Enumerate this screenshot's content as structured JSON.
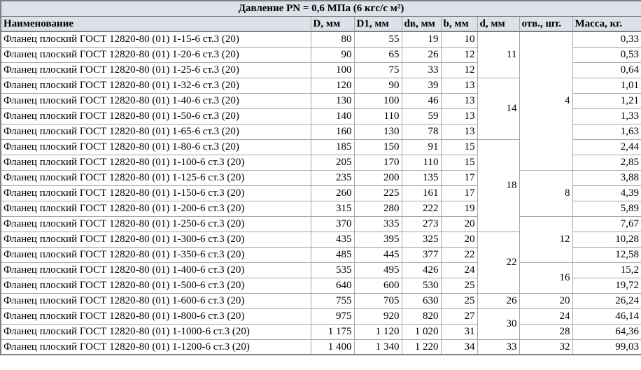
{
  "table": {
    "title": "Давление PN = 0,6 МПа (6 кгс/с м²)",
    "columns": [
      "Наименование",
      "D, мм",
      "D1, мм",
      "dв, мм",
      "b, мм",
      "d, мм",
      "отв., шт.",
      "Масса, кг."
    ],
    "rows": [
      {
        "name": "Фланец плоский ГОСТ 12820-80 (01) 1-15-6 ст.3 (20)",
        "D": "80",
        "D1": "55",
        "dv": "19",
        "b": "10",
        "d": "11",
        "d_rowspan": 3,
        "otv": "4",
        "otv_rowspan": 9,
        "mass": "0,33"
      },
      {
        "name": "Фланец плоский ГОСТ 12820-80 (01) 1-20-6 ст.3 (20)",
        "D": "90",
        "D1": "65",
        "dv": "26",
        "b": "12",
        "mass": "0,53"
      },
      {
        "name": "Фланец плоский ГОСТ 12820-80 (01) 1-25-6 ст.3 (20)",
        "D": "100",
        "D1": "75",
        "dv": "33",
        "b": "12",
        "mass": "0,64"
      },
      {
        "name": "Фланец плоский ГОСТ 12820-80 (01) 1-32-6 ст.3 (20)",
        "D": "120",
        "D1": "90",
        "dv": "39",
        "b": "13",
        "d": "14",
        "d_rowspan": 4,
        "mass": "1,01"
      },
      {
        "name": "Фланец плоский ГОСТ 12820-80 (01) 1-40-6 ст.3 (20)",
        "D": "130",
        "D1": "100",
        "dv": "46",
        "b": "13",
        "mass": "1,21"
      },
      {
        "name": "Фланец плоский ГОСТ 12820-80 (01) 1-50-6 ст.3 (20)",
        "D": "140",
        "D1": "110",
        "dv": "59",
        "b": "13",
        "mass": "1,33"
      },
      {
        "name": "Фланец плоский ГОСТ 12820-80 (01) 1-65-6 ст.3 (20)",
        "D": "160",
        "D1": "130",
        "dv": "78",
        "b": "13",
        "mass": "1,63"
      },
      {
        "name": "Фланец плоский ГОСТ 12820-80 (01) 1-80-6 ст.3 (20)",
        "D": "185",
        "D1": "150",
        "dv": "91",
        "b": "15",
        "d": "18",
        "d_rowspan": 6,
        "mass": "2,44"
      },
      {
        "name": "Фланец плоский ГОСТ 12820-80 (01) 1-100-6 ст.3 (20)",
        "D": "205",
        "D1": "170",
        "dv": "110",
        "b": "15",
        "mass": "2,85"
      },
      {
        "name": "Фланец плоский ГОСТ 12820-80 (01) 1-125-6 ст.3 (20)",
        "D": "235",
        "D1": "200",
        "dv": "135",
        "b": "17",
        "otv": "8",
        "otv_rowspan": 3,
        "mass": "3,88"
      },
      {
        "name": "Фланец плоский ГОСТ 12820-80 (01) 1-150-6 ст.3 (20)",
        "D": "260",
        "D1": "225",
        "dv": "161",
        "b": "17",
        "mass": "4,39"
      },
      {
        "name": "Фланец плоский ГОСТ 12820-80 (01) 1-200-6 ст.3 (20)",
        "D": "315",
        "D1": "280",
        "dv": "222",
        "b": "19",
        "mass": "5,89"
      },
      {
        "name": "Фланец плоский ГОСТ 12820-80 (01) 1-250-6 ст.3 (20)",
        "D": "370",
        "D1": "335",
        "dv": "273",
        "b": "20",
        "otv": "12",
        "otv_rowspan": 3,
        "mass": "7,67"
      },
      {
        "name": "Фланец плоский ГОСТ 12820-80 (01) 1-300-6 ст.3 (20)",
        "D": "435",
        "D1": "395",
        "dv": "325",
        "b": "20",
        "d": "22",
        "d_rowspan": 4,
        "mass": "10,28"
      },
      {
        "name": "Фланец плоский ГОСТ 12820-80 (01) 1-350-6 ст.3 (20)",
        "D": "485",
        "D1": "445",
        "dv": "377",
        "b": "22",
        "mass": "12,58"
      },
      {
        "name": "Фланец плоский ГОСТ 12820-80 (01) 1-400-6 ст.3 (20)",
        "D": "535",
        "D1": "495",
        "dv": "426",
        "b": "24",
        "otv": "16",
        "otv_rowspan": 2,
        "mass": "15,2"
      },
      {
        "name": "Фланец плоский ГОСТ 12820-80 (01) 1-500-6 ст.3 (20)",
        "D": "640",
        "D1": "600",
        "dv": "530",
        "b": "25",
        "mass": "19,72"
      },
      {
        "name": "Фланец плоский ГОСТ 12820-80 (01) 1-600-6 ст.3 (20)",
        "D": "755",
        "D1": "705",
        "dv": "630",
        "b": "25",
        "d": "26",
        "d_rowspan": 1,
        "otv": "20",
        "otv_rowspan": 1,
        "mass": "26,24"
      },
      {
        "name": "Фланец плоский ГОСТ 12820-80 (01) 1-800-6 ст.3 (20)",
        "D": "975",
        "D1": "920",
        "dv": "820",
        "b": "27",
        "d": "30",
        "d_rowspan": 2,
        "otv": "24",
        "otv_rowspan": 1,
        "mass": "46,14"
      },
      {
        "name": "Фланец плоский ГОСТ 12820-80 (01) 1-1000-6 ст.3 (20)",
        "D": "1 175",
        "D1": "1 120",
        "dv": "1 020",
        "b": "31",
        "otv": "28",
        "otv_rowspan": 1,
        "mass": "64,36"
      },
      {
        "name": "Фланец плоский ГОСТ 12820-80 (01) 1-1200-6 ст.3 (20)",
        "D": "1 400",
        "D1": "1 340",
        "dv": "1 220",
        "b": "34",
        "d": "33",
        "d_rowspan": 1,
        "otv": "32",
        "otv_rowspan": 1,
        "mass": "99,03"
      }
    ],
    "colors": {
      "header_bg": "#dce2e9",
      "grid_border": "#a6a6a6",
      "outer_border": "#7f7f7f",
      "text": "#000000"
    }
  }
}
